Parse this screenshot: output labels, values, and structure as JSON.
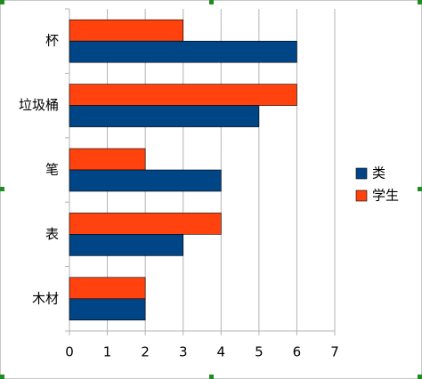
{
  "chart_data": {
    "type": "bar",
    "orientation": "horizontal",
    "categories": [
      "杯",
      "垃圾桶",
      "笔",
      "表",
      "木材"
    ],
    "series": [
      {
        "name": "类",
        "color": "#004586",
        "values": [
          6,
          5,
          4,
          3,
          2
        ]
      },
      {
        "name": "学生",
        "color": "#ff420e",
        "values": [
          3,
          6,
          2,
          4,
          2
        ]
      }
    ],
    "xlim": [
      0,
      7
    ],
    "xticks": [
      0,
      1,
      2,
      3,
      4,
      5,
      6,
      7
    ],
    "grid": true,
    "legend": "right"
  }
}
